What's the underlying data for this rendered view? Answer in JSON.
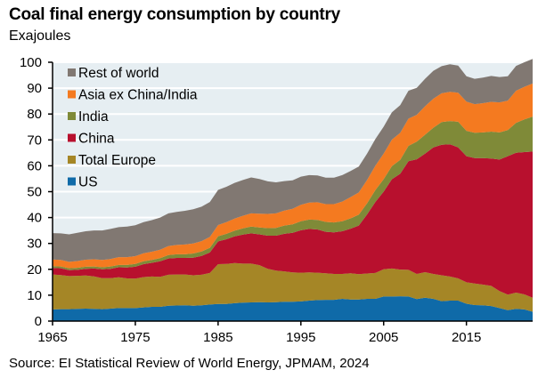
{
  "chart_data": {
    "type": "area",
    "stacked": true,
    "title": "Coal final energy consumption by country",
    "subtitle": "Exajoules",
    "source": "Source: EI Statistical Review of World Energy, JPMAM, 2024",
    "xlabel": "",
    "ylabel": "Exajoules",
    "xlim": [
      1965,
      2023
    ],
    "ylim": [
      0,
      100
    ],
    "x_ticks": [
      1965,
      1975,
      1985,
      1995,
      2005,
      2015
    ],
    "y_ticks": [
      0,
      10,
      20,
      30,
      40,
      50,
      60,
      70,
      80,
      90,
      100
    ],
    "grid": "horizontal",
    "legend_position": "top-left",
    "x": [
      1965,
      1966,
      1967,
      1968,
      1969,
      1970,
      1971,
      1972,
      1973,
      1974,
      1975,
      1976,
      1977,
      1978,
      1979,
      1980,
      1981,
      1982,
      1983,
      1984,
      1985,
      1986,
      1987,
      1988,
      1989,
      1990,
      1991,
      1992,
      1993,
      1994,
      1995,
      1996,
      1997,
      1998,
      1999,
      2000,
      2001,
      2002,
      2003,
      2004,
      2005,
      2006,
      2007,
      2008,
      2009,
      2010,
      2011,
      2012,
      2013,
      2014,
      2015,
      2016,
      2017,
      2018,
      2019,
      2020,
      2021,
      2022,
      2023
    ],
    "series": [
      {
        "name": "US",
        "color": "#0f6aa8",
        "values": [
          4.5,
          4.6,
          4.6,
          4.7,
          4.8,
          4.7,
          4.6,
          4.8,
          5.0,
          5.0,
          5.0,
          5.3,
          5.5,
          5.5,
          5.9,
          6.0,
          6.1,
          5.9,
          6.1,
          6.4,
          6.6,
          6.6,
          6.9,
          7.1,
          7.2,
          7.3,
          7.2,
          7.3,
          7.5,
          7.5,
          7.6,
          7.9,
          8.1,
          8.2,
          8.2,
          8.6,
          8.3,
          8.3,
          8.6,
          8.6,
          9.5,
          9.5,
          9.6,
          9.5,
          8.5,
          9.0,
          8.6,
          7.7,
          7.9,
          7.9,
          6.7,
          6.2,
          6.1,
          5.8,
          5.0,
          4.2,
          4.7,
          4.5,
          3.6
        ]
      },
      {
        "name": "Total Europe",
        "color": "#a58626",
        "values": [
          13.5,
          13.2,
          12.8,
          12.8,
          12.8,
          12.6,
          12.0,
          11.8,
          11.9,
          11.5,
          11.4,
          11.7,
          11.7,
          11.6,
          12.0,
          12.0,
          11.9,
          11.8,
          11.8,
          12.2,
          15.4,
          15.5,
          15.5,
          15.1,
          15.0,
          14.3,
          13.0,
          12.2,
          11.7,
          11.3,
          11.1,
          10.9,
          10.6,
          10.3,
          10.0,
          9.6,
          10.2,
          9.8,
          9.8,
          10.0,
          10.5,
          10.8,
          10.3,
          10.3,
          9.7,
          9.9,
          9.6,
          10.0,
          9.3,
          8.6,
          8.3,
          8.3,
          8.0,
          7.8,
          6.6,
          6.0,
          6.3,
          5.8,
          5.4
        ]
      },
      {
        "name": "China",
        "color": "#b8102e",
        "values": [
          2.5,
          2.6,
          2.3,
          2.3,
          2.6,
          3.0,
          3.4,
          3.6,
          3.9,
          4.2,
          4.6,
          5.0,
          5.3,
          6.0,
          6.3,
          6.4,
          6.4,
          6.8,
          7.3,
          7.9,
          8.8,
          9.5,
          10.3,
          11.2,
          11.7,
          11.9,
          12.8,
          13.5,
          14.5,
          15.3,
          16.4,
          16.8,
          16.7,
          16.0,
          16.1,
          16.5,
          17.2,
          18.8,
          22.8,
          27.4,
          30.0,
          34.5,
          37.0,
          42.0,
          44.3,
          45.8,
          48.9,
          50.4,
          51.1,
          50.6,
          48.7,
          48.5,
          48.9,
          49.2,
          50.8,
          53.5,
          54.0,
          55.0,
          56.5
        ]
      },
      {
        "name": "India",
        "color": "#7f8a38",
        "values": [
          0.7,
          0.7,
          0.7,
          0.8,
          0.8,
          0.8,
          0.8,
          0.9,
          0.9,
          1.0,
          1.1,
          1.1,
          1.1,
          1.2,
          1.3,
          1.4,
          1.4,
          1.6,
          1.7,
          1.8,
          2.0,
          2.1,
          2.2,
          2.4,
          2.6,
          2.7,
          2.9,
          3.0,
          3.2,
          3.3,
          3.5,
          3.6,
          3.7,
          3.8,
          3.8,
          3.9,
          4.0,
          4.2,
          4.3,
          4.6,
          4.8,
          5.1,
          5.4,
          5.9,
          6.8,
          7.3,
          7.6,
          8.8,
          9.0,
          9.9,
          9.8,
          9.8,
          9.9,
          10.4,
          10.5,
          10.1,
          11.6,
          12.6,
          13.5
        ]
      },
      {
        "name": "Asia ex China/India",
        "color": "#f47a20",
        "values": [
          2.6,
          2.5,
          2.5,
          2.6,
          2.7,
          2.8,
          2.8,
          2.9,
          3.0,
          3.0,
          3.0,
          3.1,
          3.2,
          3.3,
          3.5,
          3.6,
          3.8,
          3.9,
          4.0,
          4.2,
          4.3,
          4.5,
          4.7,
          4.9,
          5.1,
          5.3,
          5.5,
          5.6,
          5.8,
          6.0,
          6.3,
          6.6,
          6.8,
          6.9,
          7.1,
          7.6,
          8.2,
          8.6,
          9.0,
          9.4,
          9.9,
          10.2,
          10.4,
          10.5,
          10.4,
          11.0,
          11.2,
          11.1,
          11.3,
          11.2,
          11.3,
          11.0,
          11.3,
          11.5,
          11.6,
          11.4,
          12.4,
          12.6,
          12.8
        ]
      },
      {
        "name": "Rest of world",
        "color": "#817872",
        "values": [
          10.2,
          10.3,
          10.6,
          10.9,
          11.0,
          11.1,
          11.4,
          11.6,
          11.6,
          11.8,
          11.9,
          12.0,
          12.2,
          12.4,
          12.6,
          12.8,
          13.0,
          13.2,
          13.3,
          13.5,
          13.6,
          13.7,
          13.8,
          13.8,
          13.9,
          13.4,
          12.6,
          12.0,
          11.4,
          11.0,
          10.9,
          10.6,
          10.4,
          10.2,
          10.2,
          10.2,
          10.1,
          10.0,
          10.2,
          10.3,
          10.4,
          10.6,
          10.7,
          10.8,
          10.4,
          10.6,
          10.8,
          10.5,
          10.6,
          10.5,
          9.8,
          9.8,
          9.9,
          10.0,
          9.8,
          9.4,
          9.6,
          9.5,
          9.5
        ]
      }
    ],
    "plot_background": "#e6eef2",
    "legend_order": [
      "Rest of world",
      "Asia ex China/India",
      "India",
      "China",
      "Total Europe",
      "US"
    ]
  }
}
